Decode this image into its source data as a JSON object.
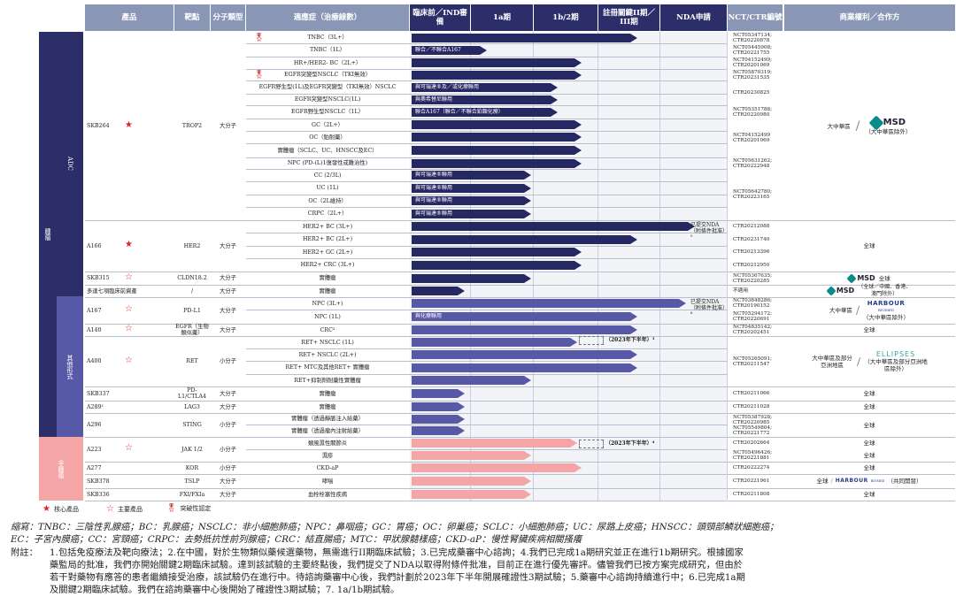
{
  "headers": {
    "product": "產品",
    "target": "靶點",
    "modality": "分子類型",
    "indication": "適應症（治療線數）",
    "preclinical": "臨床前／IND審備",
    "p1a": "1a期",
    "p1b2": "1b/2期",
    "pivotal": "註冊關鍵II期／III期",
    "nda": "NDA申請",
    "nct": "NCT/CTR編號",
    "rights": "商業權利／合作方"
  },
  "blocks": {
    "oncology": "腫瘤",
    "adc": "ADC",
    "others": "其他形式",
    "immunology": "非腫瘤"
  },
  "products": [
    {
      "name": "SKB264",
      "target": "TROP2",
      "modality": "大分子",
      "mark": "core"
    },
    {
      "name": "A166",
      "target": "HER2",
      "modality": "大分子",
      "mark": "core"
    },
    {
      "name": "SKB315",
      "target": "CLDN18.2",
      "modality": "大分子",
      "mark": "key"
    },
    {
      "name": "多達七項臨床前資產",
      "target": "/",
      "modality": "大分子",
      "mark": ""
    },
    {
      "name": "A167",
      "target": "PD-L1",
      "modality": "大分子",
      "mark": "key"
    },
    {
      "name": "A140",
      "target": "EGFR（生物類似藥）",
      "modality": "大分子",
      "mark": "key"
    },
    {
      "name": "A400",
      "target": "RET",
      "modality": "小分子",
      "mark": "key"
    },
    {
      "name": "SKB337",
      "target": "PD-L1/CTLA4",
      "modality": "大分子",
      "mark": ""
    },
    {
      "name": "A289¹",
      "target": "LAG3",
      "modality": "大分子",
      "mark": ""
    },
    {
      "name": "A296",
      "target": "STING",
      "modality": "小分子",
      "mark": ""
    },
    {
      "name": "A223",
      "target": "JAK 1/2",
      "modality": "小分子",
      "mark": "key"
    },
    {
      "name": "A277",
      "target": "KOR",
      "modality": "小分子",
      "mark": ""
    },
    {
      "name": "SKB378",
      "target": "TSLP",
      "modality": "大分子",
      "mark": ""
    },
    {
      "name": "SKB336",
      "target": "FXI/FXIa",
      "modality": "大分子",
      "mark": ""
    }
  ],
  "rows": [
    {
      "ind": "TNBC（3L+）",
      "bar": "",
      "nct": ""
    },
    {
      "ind": "TNBC（1L）",
      "bar": "聯合／不聯合A167",
      "nct": ""
    },
    {
      "ind": "HR+/HER2- BC（2L+）",
      "bar": "",
      "nct": ""
    },
    {
      "ind": "EGFR突變型NSCLC（TKI無效）",
      "bar": "",
      "nct": ""
    },
    {
      "ind": "EGFR野生型(1L)及EGFR突變型（TKI無效）NSCLC",
      "bar": "與可瑞達®及／或化療聯用",
      "nct": ""
    },
    {
      "ind": "EGFR突變型NSCLC(1L)",
      "bar": "與奧希替尼聯用",
      "nct": ""
    },
    {
      "ind": "EGFR野生型NSCLC（1L）",
      "bar": "聯合A167（聯合／不聯合鉑類化療）",
      "nct": ""
    },
    {
      "ind": "GC（2L+）",
      "bar": "",
      "nct": ""
    },
    {
      "ind": "OC（鉑耐藥）",
      "bar": "",
      "nct": ""
    },
    {
      "ind": "實體瘤（SCLC、UC、HNSCC及EC）",
      "bar": "",
      "nct": ""
    },
    {
      "ind": "NPC (PD-(L)1復發性或難治性)",
      "bar": "",
      "nct": ""
    },
    {
      "ind": "CC (2/3L)",
      "bar": "與可瑞達®聯用",
      "nct": ""
    },
    {
      "ind": "UC (1L)",
      "bar": "與可瑞達®聯用",
      "nct": ""
    },
    {
      "ind": "OC（2L維持）",
      "bar": "與可瑞達®聯用",
      "nct": ""
    },
    {
      "ind": "CRPC（2L+）",
      "bar": "與可瑞達®聯用",
      "nct": ""
    },
    {
      "ind": "HER2+ BC (3L+)",
      "bar": "",
      "nct": ""
    },
    {
      "ind": "HER2+ BC (2L+)",
      "bar": "",
      "nct": ""
    },
    {
      "ind": "HER2+ GC (2L+)",
      "bar": "",
      "nct": ""
    },
    {
      "ind": "HER2+ CRC (3L+)",
      "bar": "",
      "nct": ""
    },
    {
      "ind": "實體瘤",
      "bar": "",
      "nct": ""
    },
    {
      "ind": "實體瘤",
      "bar": "",
      "nct": ""
    },
    {
      "ind": "NPC (3L+)",
      "bar": "",
      "nct": ""
    },
    {
      "ind": "NPC (1L)",
      "bar": "與化療聯用",
      "nct": ""
    },
    {
      "ind": "CRC²",
      "bar": "",
      "nct": ""
    },
    {
      "ind": "RET+ NSCLC (1L)",
      "bar": "",
      "nct": ""
    },
    {
      "ind": "RET+ NSCLC (2L+)",
      "bar": "",
      "nct": ""
    },
    {
      "ind": "RET+ MTC及其他RET+ 實體瘤",
      "bar": "",
      "nct": ""
    },
    {
      "ind": "RET+抑制劑耐藥性實體瘤",
      "bar": "",
      "nct": ""
    },
    {
      "ind": "實體瘤",
      "bar": "",
      "nct": ""
    },
    {
      "ind": "實體瘤",
      "bar": "",
      "nct": ""
    },
    {
      "ind": "實體瘤（透過靜脈注入給藥）",
      "bar": "",
      "nct": ""
    },
    {
      "ind": "實體瘤（透過瘤內注射給藥）",
      "bar": "",
      "nct": ""
    },
    {
      "ind": "類風濕性關節炎",
      "bar": "",
      "nct": ""
    },
    {
      "ind": "濕疹",
      "bar": "",
      "nct": ""
    },
    {
      "ind": "CKD-aP",
      "bar": "",
      "nct": ""
    },
    {
      "ind": "哮喘",
      "bar": "",
      "nct": ""
    },
    {
      "ind": "血栓栓塞性疾病",
      "bar": "",
      "nct": ""
    }
  ],
  "ncts": {
    "skb264_a": [
      "NCT05347134;",
      "CTR20220878"
    ],
    "skb264_b": [
      "NCT05445908;",
      "CTR20221755"
    ],
    "skb264_c": [
      "NCT04152499;",
      "CTR20201069"
    ],
    "skb264_d": [
      "NCT05870319;",
      "CTR20231535"
    ],
    "skb264_e": [
      "CTR20230825"
    ],
    "skb264_f": [
      "NCT05351788;",
      "CTR20220980"
    ],
    "skb264_g": [
      "NCT04152499",
      "CTR20201069"
    ],
    "skb264_h": [
      "NCT05631262;",
      "CTR20222948"
    ],
    "skb264_i": [
      "NCT05642780;",
      "CTR20223165"
    ],
    "a166_a": [
      "CTR20212088"
    ],
    "a166_b": [
      "CTR20231740"
    ],
    "a166_c": [
      "CTR20213396"
    ],
    "a166_d": [
      "CTR20212950"
    ],
    "skb315": [
      "NCT05367635;",
      "CTR20220285"
    ],
    "pre": [
      "不適用"
    ],
    "a167_a": [
      "NCT03848286;",
      "CTR20190152"
    ],
    "a167_b": [
      "NCT05294172;",
      "CTR20220691"
    ],
    "a140": [
      "NCT04835142;",
      "CTR20202451"
    ],
    "a400": [
      "NCT05265091;",
      "CTR20211547"
    ],
    "skb337": [
      "CTR20211066"
    ],
    "a289": [
      "CTR20211028"
    ],
    "a296": [
      "NCT05387928;",
      "CTR20220985",
      "NCT05549804;",
      "CTR20221772"
    ],
    "a223_a": [
      "CTR20202664"
    ],
    "a223_b": [
      "NCT05496426;",
      "CTR20221881"
    ],
    "a277": [
      "CTR20222274"
    ],
    "skb378": [
      "CTR20221961"
    ],
    "skb336": [
      "CTR20211808"
    ]
  },
  "nda_notes": {
    "a166": "已提交NDA（附條件批准）⁵",
    "a167": "已提交NDA（附條件批准）⁶"
  },
  "dash_notes": {
    "a400": "（2023年下半年）³",
    "a223": "（2023年下半年）⁴"
  },
  "rights": {
    "skb264_region": "大中華區",
    "skb264_partner": "MSD",
    "skb264_partner_note": "（大中華區除外）",
    "global": "全球",
    "skb315_partner": "MSD",
    "skb315_global": "全球",
    "pre_partner": "MSD",
    "pre_note": "（全球／中國、香港、澳門除外）",
    "a167_region": "大中華區",
    "a167_partner": "HARBOUR",
    "a167_partner_sub": "BIOMED",
    "a167_note": "（大中華區除外）",
    "a400_region": "大中華區及部分亞洲地區",
    "a400_partner": "ELLIPSES",
    "a400_note": "（大中華區及部分亞洲地區除外）",
    "skb378_global": "全球",
    "skb378_partner": "HARBOUR",
    "skb378_sub": "BIOMED",
    "skb378_note": "（共同開發）"
  },
  "legend": {
    "core": "核心產品",
    "key": "主要產品",
    "breakthrough": "突破性認定"
  },
  "footnotes": {
    "abbr_1": "縮寫：TNBC：三陰性乳腺癌；BC：乳腺癌；NSCLC：非小細胞肺癌；NPC：鼻咽癌；GC：胃癌；OC：卵巢癌；SCLC：小細胞肺癌；UC：尿路上皮癌；HNSCC：頭頸部鱗狀細胞癌；",
    "abbr_2": "EC：子宮內膜癌；CC：宮頸癌；CRPC：去勢抵抗性前列腺癌；CRC：結直腸癌；MTC：甲狀腺髓樣癌；CKD-aP：慢性腎臟疾病相關搔癢",
    "note_label": "附註：",
    "note_1": "1.包括免疫療法及靶向療法；2.在中國，對於生物類似藥候選藥物，無需進行II期臨床試驗；3.已完成藥審中心諮詢；4.我們已完成1a期研究並正在進行1b期研究。根據國家",
    "note_2": "藥監局的批准，我們亦開始關鍵2期臨床試驗。達到該試驗的主要終點後，我們提交了NDA以取得附條件批准，目前正在進行優先審評。儘管我們已按方案完成研究，但由於",
    "note_3": "若干對藥物有應答的患者繼續接受治療，該試驗仍在進行中。待諮詢藥審中心後，我們計劃於2023年下半年開展確證性3期試驗；5.藥審中心諮詢持續進行中；6.已完成1a期",
    "note_4": "及關鍵2期臨床試驗。我們在諮詢藥審中心後開始了確證性3期試驗；7. 1a/1b期試驗。"
  },
  "colors": {
    "dark": "#262862",
    "mid": "#5758a6",
    "pink": "#f4a6a6",
    "header": "#8a96b6",
    "adc": "#2c2e6a",
    "onc": "#2c2e6a",
    "other": "#5758a6",
    "immu": "#f4a6a6"
  }
}
